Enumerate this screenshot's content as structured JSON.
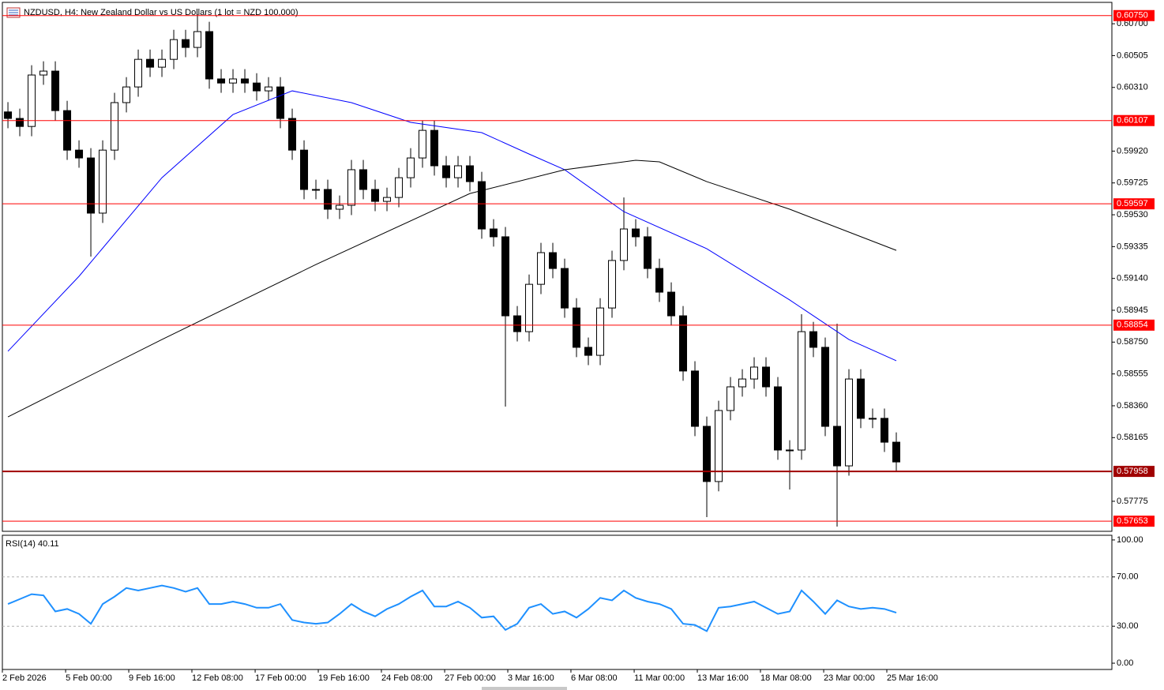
{
  "chart_data": {
    "type": "candlestick",
    "title": "NZDUSD, H4:  New Zealand Dollar vs US Dollars (1 lot = NZD 100,000)",
    "candles": {
      "open": [
        0.6016,
        0.6012,
        0.60071,
        0.60386,
        0.6041,
        0.60168,
        0.59926,
        0.59878,
        0.5954,
        0.59926,
        0.60217,
        0.60313,
        0.60482,
        0.60434,
        0.60482,
        0.60603,
        0.60555,
        0.60652,
        0.60362,
        0.60337,
        0.60362,
        0.60337,
        0.60289,
        0.60313,
        0.6012,
        0.59926,
        0.59685,
        0.59685,
        0.59564,
        0.59588,
        0.59806,
        0.59685,
        0.59612,
        0.59636,
        0.59757,
        0.59878,
        0.60047,
        0.5983,
        0.59757,
        0.5983,
        0.59733,
        0.59443,
        0.59395,
        0.58911,
        0.58814,
        0.59104,
        0.59298,
        0.59201,
        0.58959,
        0.58718,
        0.58669,
        0.58959,
        0.5925,
        0.59443,
        0.59395,
        0.59201,
        0.59056,
        0.58911,
        0.58573,
        0.58234,
        0.57896,
        0.58331,
        0.58476,
        0.58524,
        0.58597,
        0.58476,
        0.58089,
        0.58089,
        0.58814,
        0.58718,
        0.58234,
        0.57992,
        0.58524,
        0.58283,
        0.58283,
        0.58137
      ],
      "high": [
        0.6022,
        0.6018,
        0.60446,
        0.6047,
        0.6047,
        0.60228,
        0.59986,
        0.59938,
        0.59986,
        0.60277,
        0.60373,
        0.60542,
        0.60542,
        0.60542,
        0.60663,
        0.60663,
        0.60758,
        0.60712,
        0.60422,
        0.60422,
        0.60422,
        0.60397,
        0.60373,
        0.60373,
        0.6018,
        0.59986,
        0.59745,
        0.59745,
        0.59648,
        0.59866,
        0.59866,
        0.59745,
        0.59696,
        0.59817,
        0.59938,
        0.60107,
        0.60107,
        0.5989,
        0.5989,
        0.5989,
        0.59793,
        0.59503,
        0.59455,
        0.58971,
        0.59164,
        0.59358,
        0.59358,
        0.59261,
        0.59019,
        0.58778,
        0.59019,
        0.5931,
        0.59636,
        0.59503,
        0.59455,
        0.59261,
        0.59116,
        0.58971,
        0.58633,
        0.58294,
        0.58391,
        0.58536,
        0.58584,
        0.58657,
        0.58657,
        0.58536,
        0.58149,
        0.58921,
        0.58874,
        0.58778,
        0.58863,
        0.58584,
        0.58584,
        0.58343,
        0.58343,
        0.58197
      ],
      "low": [
        0.6006,
        0.60011,
        0.60011,
        0.60326,
        0.60108,
        0.59866,
        0.59818,
        0.59274,
        0.5948,
        0.59866,
        0.60157,
        0.60253,
        0.60374,
        0.60374,
        0.60422,
        0.60495,
        0.60495,
        0.60302,
        0.60277,
        0.60277,
        0.60277,
        0.60229,
        0.60229,
        0.6006,
        0.59866,
        0.59625,
        0.59625,
        0.59504,
        0.59504,
        0.59528,
        0.59625,
        0.59552,
        0.59552,
        0.59576,
        0.59697,
        0.59818,
        0.5977,
        0.59697,
        0.59697,
        0.59673,
        0.59383,
        0.59335,
        0.58355,
        0.58754,
        0.58754,
        0.59044,
        0.59141,
        0.58899,
        0.58658,
        0.58609,
        0.58609,
        0.58899,
        0.5919,
        0.59335,
        0.59141,
        0.58996,
        0.58851,
        0.58513,
        0.58174,
        0.57678,
        0.57836,
        0.58271,
        0.58416,
        0.58464,
        0.58416,
        0.58029,
        0.57847,
        0.58029,
        0.58658,
        0.58174,
        0.5762,
        0.57932,
        0.58223,
        0.58223,
        0.58077,
        0.57956
      ],
      "close": [
        0.6012,
        0.60071,
        0.60386,
        0.6041,
        0.60168,
        0.59926,
        0.59878,
        0.5954,
        0.59926,
        0.60217,
        0.60313,
        0.60482,
        0.60434,
        0.60482,
        0.60603,
        0.60555,
        0.60652,
        0.60362,
        0.60337,
        0.60362,
        0.60337,
        0.60289,
        0.60313,
        0.6012,
        0.59926,
        0.59685,
        0.59685,
        0.59564,
        0.59588,
        0.59806,
        0.59685,
        0.59612,
        0.59636,
        0.59757,
        0.59878,
        0.60047,
        0.5983,
        0.59757,
        0.5983,
        0.59733,
        0.59443,
        0.59395,
        0.58911,
        0.58814,
        0.59104,
        0.59298,
        0.59201,
        0.58959,
        0.58718,
        0.58669,
        0.58959,
        0.5925,
        0.59443,
        0.59395,
        0.59201,
        0.59056,
        0.58911,
        0.58573,
        0.58234,
        0.57896,
        0.58331,
        0.58476,
        0.58524,
        0.58597,
        0.58476,
        0.58089,
        0.58089,
        0.58814,
        0.58718,
        0.58234,
        0.57992,
        0.58524,
        0.58283,
        0.58283,
        0.58137,
        0.58016
      ]
    },
    "moving_averages": [
      {
        "color": "#0000ff",
        "x": [
          0,
          6,
          13,
          19,
          24,
          29,
          34,
          40,
          44,
          47,
          52,
          59,
          66,
          71,
          75
        ],
        "values": [
          0.58694,
          0.59153,
          0.59757,
          0.60144,
          0.60289,
          0.60217,
          0.60096,
          0.60033,
          0.59902,
          0.59806,
          0.59549,
          0.59322,
          0.59008,
          0.58766,
          0.58636
        ]
      },
      {
        "color": "#000000",
        "x": [
          0,
          13,
          26,
          39,
          47,
          53,
          55,
          59,
          66,
          75
        ],
        "values": [
          0.58292,
          0.58766,
          0.59225,
          0.5966,
          0.59806,
          0.59864,
          0.59854,
          0.59733,
          0.59564,
          0.59312
        ]
      }
    ],
    "levels": [
      {
        "value": 0.6075,
        "label": "0.60750",
        "color": "#ff0000"
      },
      {
        "value": 0.60107,
        "label": "0.60107",
        "color": "#ff0000"
      },
      {
        "value": 0.59597,
        "label": "0.59597",
        "color": "#ff0000"
      },
      {
        "value": 0.58854,
        "label": "0.58854",
        "color": "#ff0000"
      },
      {
        "value": 0.57958,
        "label": "0.57958",
        "color": "#a00000"
      },
      {
        "value": 0.57653,
        "label": "0.57653",
        "color": "#ff0000"
      }
    ],
    "xlim": [
      -0.47,
      93.2
    ],
    "ylim": [
      0.57591,
      0.60831
    ],
    "yticks": [
      {
        "value": 0.607,
        "label": "0.60700"
      },
      {
        "value": 0.60505,
        "label": "0.60505"
      },
      {
        "value": 0.6031,
        "label": "0.60310"
      },
      {
        "value": 0.5992,
        "label": "0.59920"
      },
      {
        "value": 0.59725,
        "label": "0.59725"
      },
      {
        "value": 0.5953,
        "label": "0.59530"
      },
      {
        "value": 0.59335,
        "label": "0.59335"
      },
      {
        "value": 0.5914,
        "label": "0.59140"
      },
      {
        "value": 0.58945,
        "label": "0.58945"
      },
      {
        "value": 0.5875,
        "label": "0.58750"
      },
      {
        "value": 0.58555,
        "label": "0.58555"
      },
      {
        "value": 0.5836,
        "label": "0.58360"
      },
      {
        "value": 0.58165,
        "label": "0.58165"
      },
      {
        "value": 0.57775,
        "label": "0.57775"
      }
    ],
    "x_labels": [
      {
        "value": -0.47,
        "label": "2 Feb 2026"
      },
      {
        "value": 4.87,
        "label": "5 Feb 00:00"
      },
      {
        "value": 10.2,
        "label": "9 Feb 16:00"
      },
      {
        "value": 15.53,
        "label": "12 Feb 08:00"
      },
      {
        "value": 20.87,
        "label": "17 Feb 00:00"
      },
      {
        "value": 26.2,
        "label": "19 Feb 16:00"
      },
      {
        "value": 31.53,
        "label": "24 Feb 08:00"
      },
      {
        "value": 36.87,
        "label": "27 Feb 00:00"
      },
      {
        "value": 42.2,
        "label": "3 Mar 16:00"
      },
      {
        "value": 47.53,
        "label": "6 Mar 08:00"
      },
      {
        "value": 52.87,
        "label": "11 Mar 00:00"
      },
      {
        "value": 58.2,
        "label": "13 Mar 16:00"
      },
      {
        "value": 63.53,
        "label": "18 Mar 08:00"
      },
      {
        "value": 68.87,
        "label": "23 Mar 00:00"
      },
      {
        "value": 74.2,
        "label": "25 Mar 16:00"
      }
    ],
    "rsi": {
      "label": "RSI(14) 40.11",
      "color": "#1e90ff",
      "values": [
        48,
        52,
        56,
        55,
        42,
        44,
        40,
        32,
        48,
        54,
        61,
        59,
        61,
        63,
        61,
        58,
        61,
        48,
        48,
        50,
        48,
        45,
        45,
        48,
        35,
        33,
        32,
        33,
        40,
        48,
        42,
        38,
        44,
        48,
        54,
        59,
        46,
        46,
        50,
        45,
        37,
        38,
        27,
        32,
        45,
        48,
        40,
        42,
        37,
        44,
        53,
        51,
        59,
        53,
        50,
        48,
        44,
        32,
        31,
        26,
        45,
        46,
        48,
        50,
        45,
        40,
        42,
        59,
        50,
        40,
        51,
        46,
        44,
        45,
        44,
        41
      ],
      "ylim": [
        -5.1,
        103.8
      ],
      "yticks": [
        {
          "value": 100,
          "label": "100.00"
        },
        {
          "value": 70,
          "label": "70.00"
        },
        {
          "value": 30,
          "label": "30.00"
        },
        {
          "value": 0,
          "label": "0.00"
        }
      ],
      "dashed": [
        70,
        30
      ]
    }
  }
}
